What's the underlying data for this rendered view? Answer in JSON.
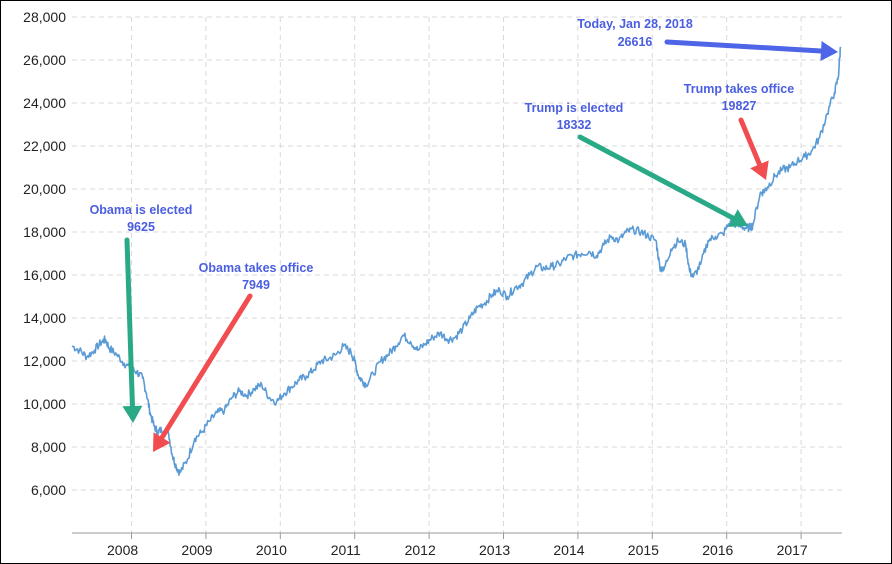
{
  "chart_data": {
    "type": "line",
    "title": "",
    "xlabel": "",
    "ylabel": "",
    "x_range": [
      2007.75,
      2018.1
    ],
    "ylim": [
      4000,
      28000
    ],
    "y_ticks": [
      6000,
      8000,
      10000,
      12000,
      14000,
      16000,
      18000,
      20000,
      22000,
      24000,
      26000,
      28000
    ],
    "y_tick_labels": [
      "6,000",
      "8,000",
      "10,000",
      "12,000",
      "14,000",
      "16,000",
      "18,000",
      "20,000",
      "22,000",
      "24,000",
      "26,000",
      "28,000"
    ],
    "x_tick_labels": [
      "2008",
      "2009",
      "2010",
      "2011",
      "2012",
      "2013",
      "2014",
      "2015",
      "2016",
      "2017"
    ],
    "x_tick_positions": [
      2008.0,
      2009.0,
      2010.0,
      2011.0,
      2012.0,
      2013.0,
      2014.0,
      2015.0,
      2016.0,
      2017.0
    ],
    "grid": true,
    "line_color": "#5b9bd5",
    "series": [
      {
        "x": [
          2007.75,
          2007.85,
          2007.95,
          2008.05,
          2008.15,
          2008.2,
          2008.25,
          2008.35,
          2008.45,
          2008.55,
          2008.62,
          2008.7,
          2008.75,
          2008.8,
          2008.85,
          2008.9,
          2008.95,
          2009.05,
          2009.1,
          2009.15,
          2009.2,
          2009.3,
          2009.4,
          2009.5,
          2009.6,
          2009.7,
          2009.8,
          2009.9,
          2010.0,
          2010.1,
          2010.2,
          2010.3,
          2010.4,
          2010.5,
          2010.6,
          2010.7,
          2010.8,
          2010.9,
          2011.0,
          2011.1,
          2011.2,
          2011.3,
          2011.4,
          2011.5,
          2011.55,
          2011.6,
          2011.65,
          2011.7,
          2011.8,
          2011.9,
          2012.0,
          2012.1,
          2012.2,
          2012.3,
          2012.4,
          2012.5,
          2012.6,
          2012.7,
          2012.8,
          2012.9,
          2013.0,
          2013.1,
          2013.2,
          2013.3,
          2013.4,
          2013.5,
          2013.6,
          2013.7,
          2013.8,
          2013.9,
          2014.0,
          2014.1,
          2014.2,
          2014.3,
          2014.4,
          2014.5,
          2014.6,
          2014.7,
          2014.8,
          2014.9,
          2015.0,
          2015.1,
          2015.2,
          2015.3,
          2015.4,
          2015.5,
          2015.6,
          2015.65,
          2015.7,
          2015.8,
          2015.9,
          2016.0,
          2016.05,
          2016.1,
          2016.2,
          2016.3,
          2016.4,
          2016.5,
          2016.6,
          2016.7,
          2016.8,
          2016.85,
          2016.9,
          2017.0,
          2017.05,
          2017.1,
          2017.2,
          2017.3,
          2017.4,
          2017.5,
          2017.6,
          2017.7,
          2017.8,
          2017.9,
          2018.0,
          2018.05,
          2018.08
        ],
        "y": [
          12700,
          12500,
          12200,
          12500,
          12900,
          13000,
          12600,
          12300,
          11900,
          11600,
          11500,
          11200,
          10500,
          9600,
          9000,
          8700,
          8800,
          8600,
          7600,
          7100,
          6800,
          7400,
          8400,
          8700,
          9200,
          9600,
          9700,
          10300,
          10600,
          10400,
          10700,
          10900,
          10300,
          10100,
          10500,
          10800,
          11100,
          11300,
          11600,
          12000,
          12100,
          12300,
          12700,
          12400,
          12000,
          11300,
          11100,
          10900,
          11400,
          12000,
          12300,
          12700,
          13200,
          12900,
          12500,
          12800,
          13100,
          13300,
          13000,
          13100,
          13500,
          14000,
          14500,
          14700,
          15100,
          15300,
          15000,
          15400,
          15600,
          16000,
          16400,
          16300,
          16400,
          16500,
          16800,
          16900,
          17000,
          17100,
          16900,
          17400,
          17800,
          17600,
          18000,
          18100,
          18000,
          17800,
          17600,
          16400,
          16200,
          17200,
          17600,
          17400,
          16200,
          15900,
          16500,
          17600,
          17800,
          17900,
          18500,
          18300,
          18200,
          18200,
          18300,
          19800,
          19900,
          20100,
          20600,
          20900,
          21000,
          21300,
          21500,
          21800,
          22400,
          23500,
          24500,
          25200,
          26616
        ]
      }
    ],
    "annotations": [
      {
        "label": "Obama is elected",
        "value": "9625",
        "color": "#2aa986"
      },
      {
        "label": "Obama takes office",
        "value": "7949",
        "color": "#f14d51"
      },
      {
        "label": "Trump is elected",
        "value": "18332",
        "color": "#2aa986"
      },
      {
        "label": "Trump takes office",
        "value": "19827",
        "color": "#f14d51"
      },
      {
        "label": "Today, Jan 28, 2018",
        "value": "26616",
        "color": "#4e65e8"
      }
    ],
    "annotation_text_color": "#4a5ee0"
  }
}
